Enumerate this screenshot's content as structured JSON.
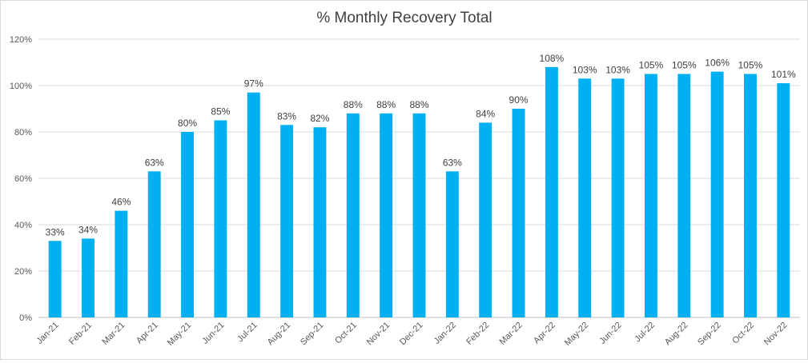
{
  "chart_data": {
    "type": "bar",
    "title": "% Monthly Recovery Total",
    "xlabel": "",
    "ylabel": "",
    "ylim": [
      0,
      120
    ],
    "yticks": [
      0,
      20,
      40,
      60,
      80,
      100,
      120
    ],
    "ytick_labels": [
      "0%",
      "20%",
      "40%",
      "60%",
      "80%",
      "100%",
      "120%"
    ],
    "grid": true,
    "legend": "none",
    "bar_color": "#00b0f0",
    "categories": [
      "Jan-21",
      "Feb-21",
      "Mar-21",
      "Apr-21",
      "May-21",
      "Jun-21",
      "Jul-21",
      "Aug-21",
      "Sep-21",
      "Oct-21",
      "Nov-21",
      "Dec-21",
      "Jan-22",
      "Feb-22",
      "Mar-22",
      "Apr-22",
      "May-22",
      "Jun-22",
      "Jul-22",
      "Aug-22",
      "Sep-22",
      "Oct-22",
      "Nov-22"
    ],
    "values": [
      33,
      34,
      46,
      63,
      80,
      85,
      97,
      83,
      82,
      88,
      88,
      88,
      63,
      84,
      90,
      108,
      103,
      103,
      105,
      105,
      106,
      105,
      101
    ],
    "data_labels": [
      "33%",
      "34%",
      "46%",
      "63%",
      "80%",
      "85%",
      "97%",
      "83%",
      "82%",
      "88%",
      "88%",
      "88%",
      "63%",
      "84%",
      "90%",
      "108%",
      "103%",
      "103%",
      "105%",
      "105%",
      "106%",
      "105%",
      "101%"
    ]
  }
}
